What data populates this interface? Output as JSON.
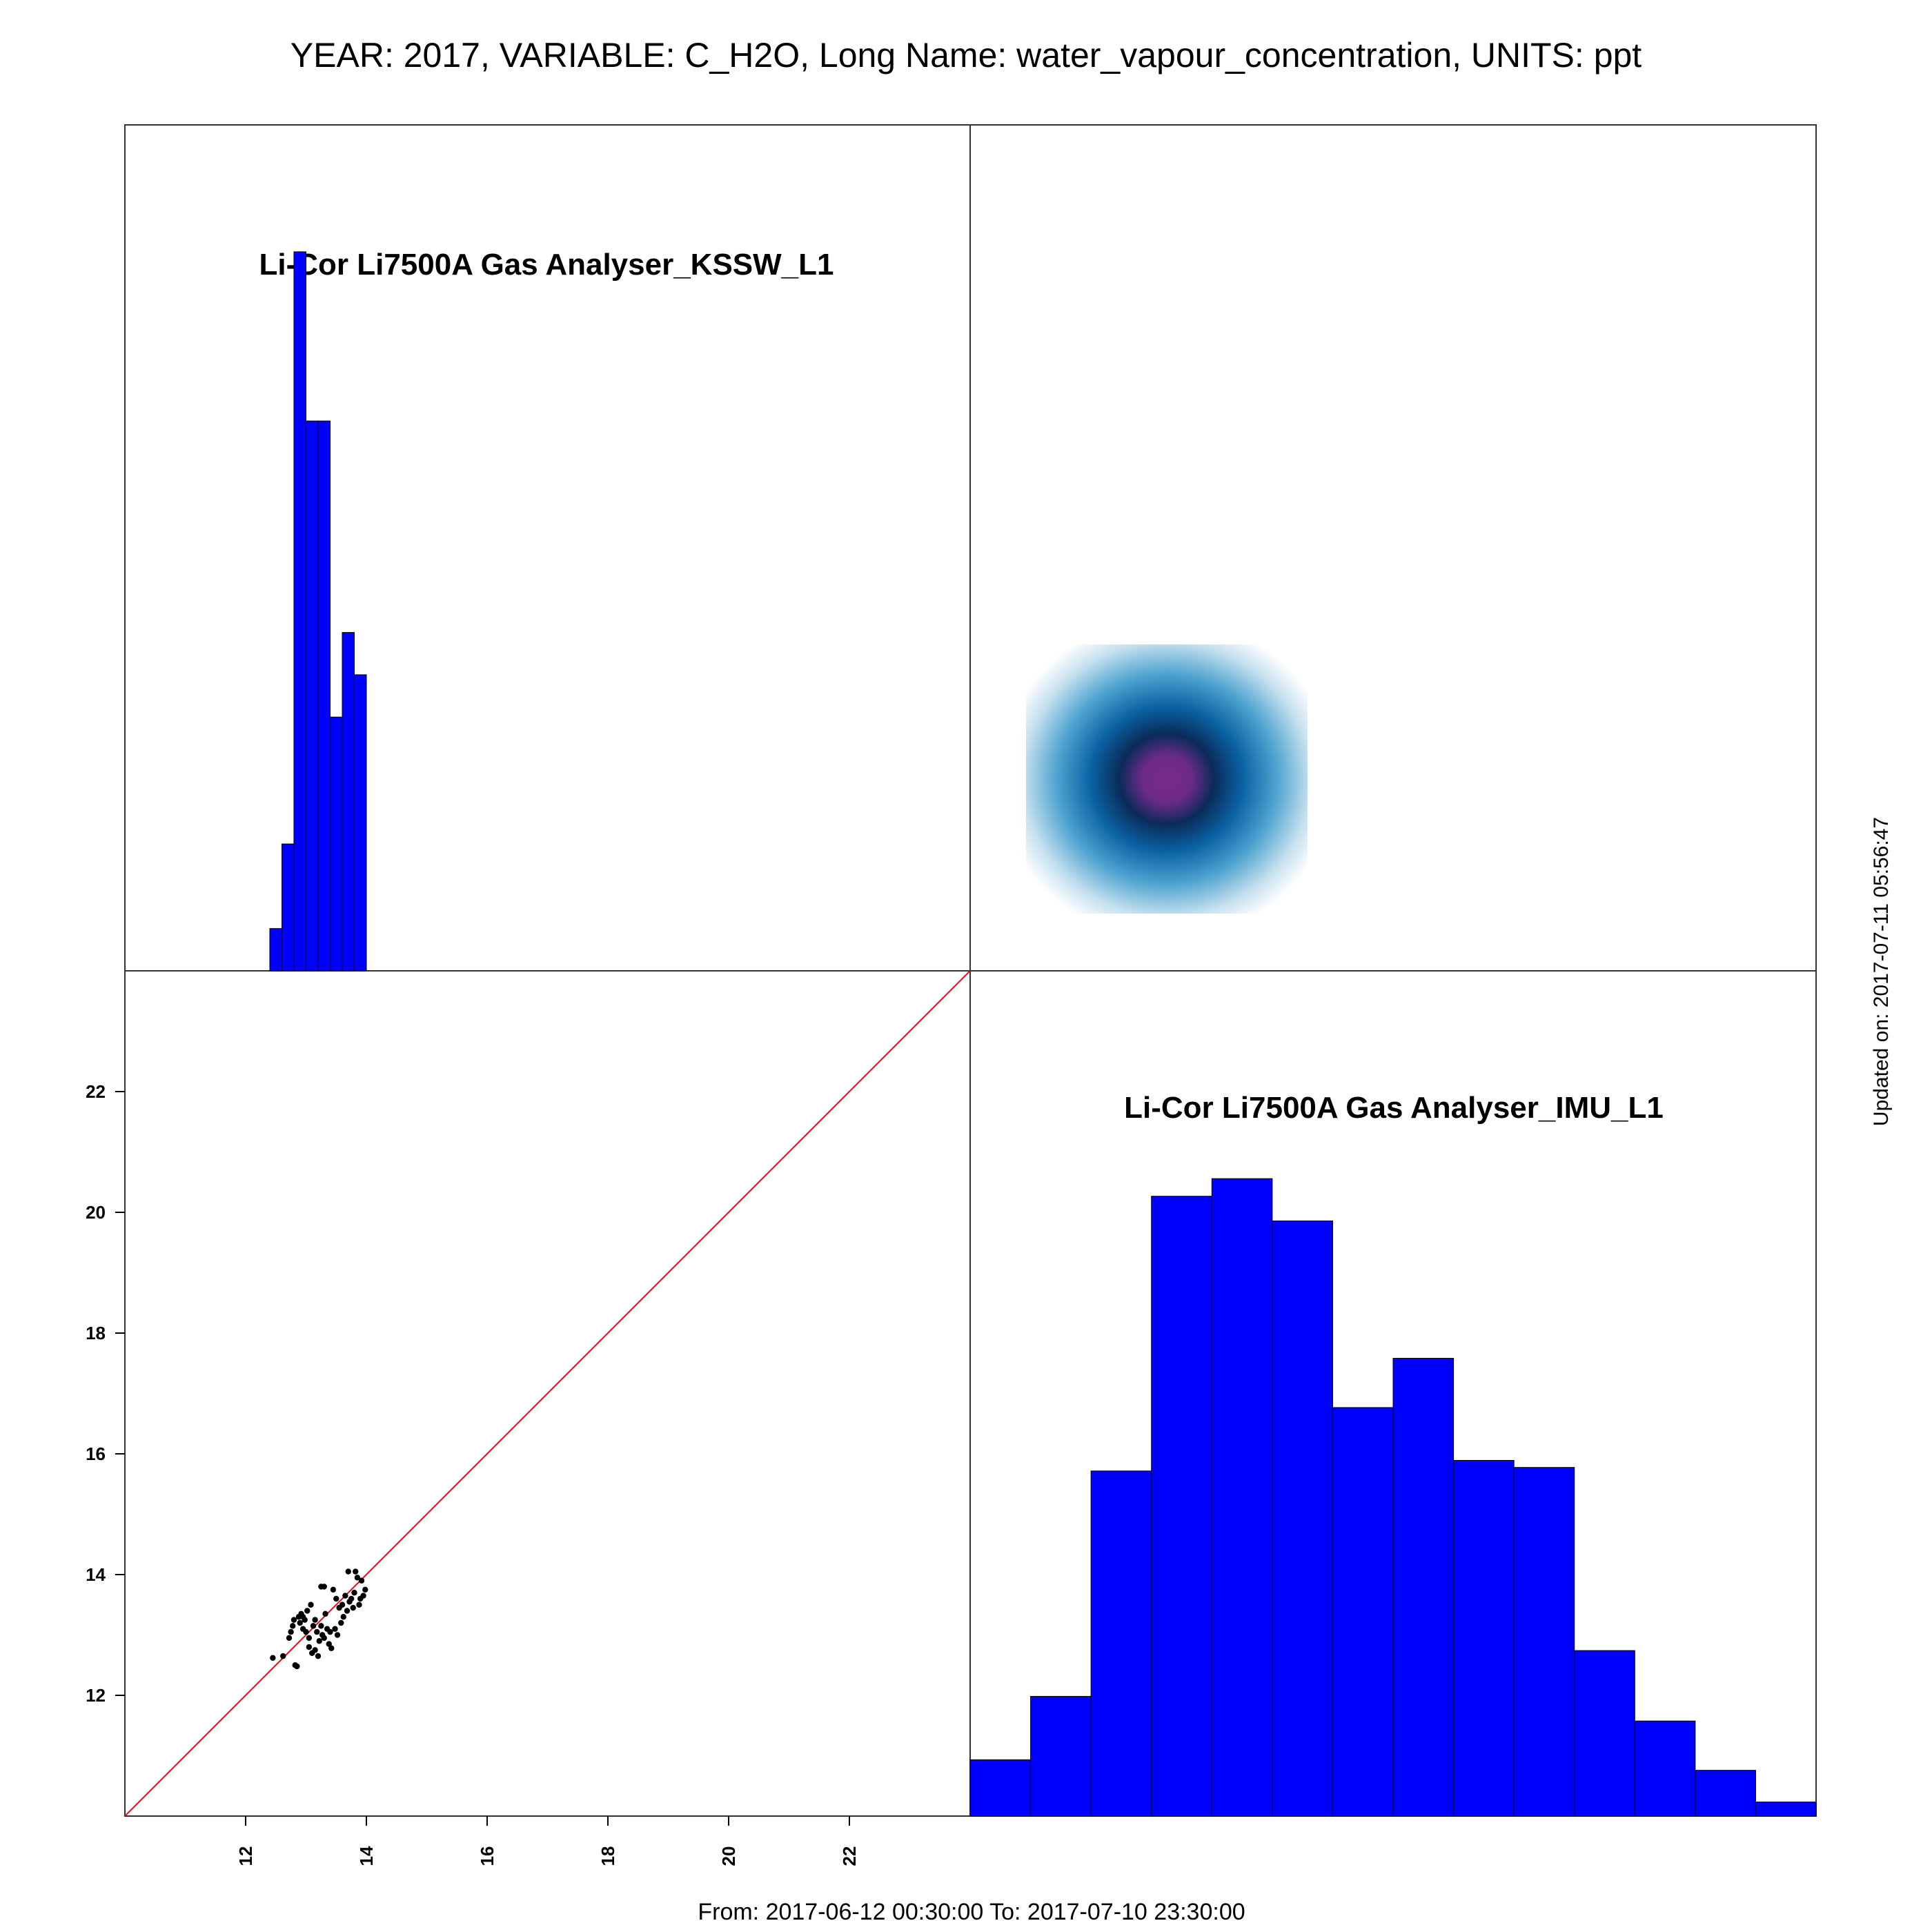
{
  "header": {
    "title": "YEAR: 2017, VARIABLE: C_H2O, Long Name: water_vapour_concentration, UNITS: ppt"
  },
  "footer": {
    "period": "From: 2017-06-12 00:30:00 To: 2017-07-10 23:30:00"
  },
  "side": {
    "updated": "Updated on: 2017-07-11 05:56:47"
  },
  "chart_data": [
    {
      "type": "bar",
      "panel": "top-left",
      "title": "Li-Cor Li7500A Gas Analyser_KSSW_L1",
      "bins": [
        {
          "x0": 12.4,
          "x1": 12.6,
          "count": 5
        },
        {
          "x0": 12.6,
          "x1": 12.8,
          "count": 15
        },
        {
          "x0": 12.8,
          "x1": 13.0,
          "count": 85
        },
        {
          "x0": 13.0,
          "x1": 13.2,
          "count": 65
        },
        {
          "x0": 13.2,
          "x1": 13.4,
          "count": 65
        },
        {
          "x0": 13.4,
          "x1": 13.6,
          "count": 30
        },
        {
          "x0": 13.6,
          "x1": 13.8,
          "count": 40
        },
        {
          "x0": 13.8,
          "x1": 14.0,
          "count": 35
        }
      ],
      "xlim": [
        10.0,
        24.0
      ],
      "ylim": [
        0,
        100
      ],
      "bar_color": "#0000ff"
    },
    {
      "type": "heatmap",
      "panel": "top-right",
      "title": "",
      "description_colors": [
        "#7b2a8e",
        "#0a2b5a",
        "#0a62a3",
        "#4ea3cf",
        "#ffffff"
      ]
    },
    {
      "type": "scatter",
      "panel": "bottom-left",
      "title": "",
      "xlabel": "",
      "ylabel": "",
      "xlim": [
        10.0,
        24.0
      ],
      "ylim": [
        10.0,
        24.0
      ],
      "xticks": [
        "12",
        "14",
        "16",
        "18",
        "20",
        "22"
      ],
      "yticks": [
        "12",
        "14",
        "16",
        "18",
        "20",
        "22"
      ],
      "reference_line": {
        "from": [
          10.0,
          10.0
        ],
        "to": [
          24.0,
          24.0
        ],
        "color": "#ff0000"
      },
      "points": [
        [
          12.45,
          12.62
        ],
        [
          12.62,
          12.65
        ],
        [
          12.72,
          12.95
        ],
        [
          12.75,
          13.05
        ],
        [
          12.78,
          13.15
        ],
        [
          12.8,
          13.25
        ],
        [
          12.82,
          12.5
        ],
        [
          12.85,
          12.48
        ],
        [
          12.88,
          13.3
        ],
        [
          12.9,
          13.2
        ],
        [
          12.92,
          13.35
        ],
        [
          12.95,
          13.1
        ],
        [
          12.98,
          13.25
        ],
        [
          13.0,
          13.05
        ],
        [
          13.02,
          13.4
        ],
        [
          13.05,
          12.95
        ],
        [
          13.08,
          13.5
        ],
        [
          13.1,
          12.7
        ],
        [
          13.12,
          13.15
        ],
        [
          13.15,
          12.75
        ],
        [
          13.18,
          13.05
        ],
        [
          13.2,
          12.65
        ],
        [
          13.22,
          12.9
        ],
        [
          13.25,
          13.8
        ],
        [
          13.27,
          13.0
        ],
        [
          13.3,
          12.95
        ],
        [
          13.32,
          13.35
        ],
        [
          13.35,
          13.1
        ],
        [
          13.38,
          12.85
        ],
        [
          13.4,
          13.05
        ],
        [
          13.42,
          12.78
        ],
        [
          13.45,
          13.75
        ],
        [
          13.48,
          13.1
        ],
        [
          13.5,
          13.6
        ],
        [
          13.52,
          13.0
        ],
        [
          13.55,
          13.45
        ],
        [
          13.58,
          13.2
        ],
        [
          13.6,
          13.5
        ],
        [
          13.62,
          13.3
        ],
        [
          13.65,
          13.65
        ],
        [
          13.68,
          13.4
        ],
        [
          13.7,
          14.05
        ],
        [
          13.72,
          13.55
        ],
        [
          13.75,
          13.6
        ],
        [
          13.78,
          13.45
        ],
        [
          13.8,
          13.7
        ],
        [
          13.82,
          14.05
        ],
        [
          13.85,
          13.95
        ],
        [
          13.88,
          13.5
        ],
        [
          13.9,
          13.6
        ],
        [
          13.92,
          13.9
        ],
        [
          13.95,
          13.65
        ],
        [
          13.98,
          13.75
        ],
        [
          12.95,
          13.3
        ],
        [
          13.3,
          13.8
        ],
        [
          13.05,
          12.8
        ],
        [
          13.15,
          13.25
        ],
        [
          13.25,
          13.15
        ]
      ]
    },
    {
      "type": "bar",
      "panel": "bottom-right",
      "title": "Li-Cor Li7500A Gas Analyser_IMU_L1",
      "bins": [
        {
          "x0": 0,
          "x1": 1,
          "count": 8
        },
        {
          "x0": 1,
          "x1": 2,
          "count": 17
        },
        {
          "x0": 2,
          "x1": 3,
          "count": 49
        },
        {
          "x0": 3,
          "x1": 4,
          "count": 88
        },
        {
          "x0": 4,
          "x1": 5,
          "count": 90.5
        },
        {
          "x0": 5,
          "x1": 6,
          "count": 84.5
        },
        {
          "x0": 6,
          "x1": 7,
          "count": 58
        },
        {
          "x0": 7,
          "x1": 8,
          "count": 65
        },
        {
          "x0": 8,
          "x1": 9,
          "count": 50.5
        },
        {
          "x0": 9,
          "x1": 10,
          "count": 49.5
        },
        {
          "x0": 10,
          "x1": 11,
          "count": 23.5
        },
        {
          "x0": 11,
          "x1": 12,
          "count": 13.5
        },
        {
          "x0": 12,
          "x1": 13,
          "count": 6.5
        },
        {
          "x0": 13,
          "x1": 14,
          "count": 2
        }
      ],
      "ylim": [
        0,
        120
      ],
      "bar_color": "#0000ff"
    }
  ]
}
